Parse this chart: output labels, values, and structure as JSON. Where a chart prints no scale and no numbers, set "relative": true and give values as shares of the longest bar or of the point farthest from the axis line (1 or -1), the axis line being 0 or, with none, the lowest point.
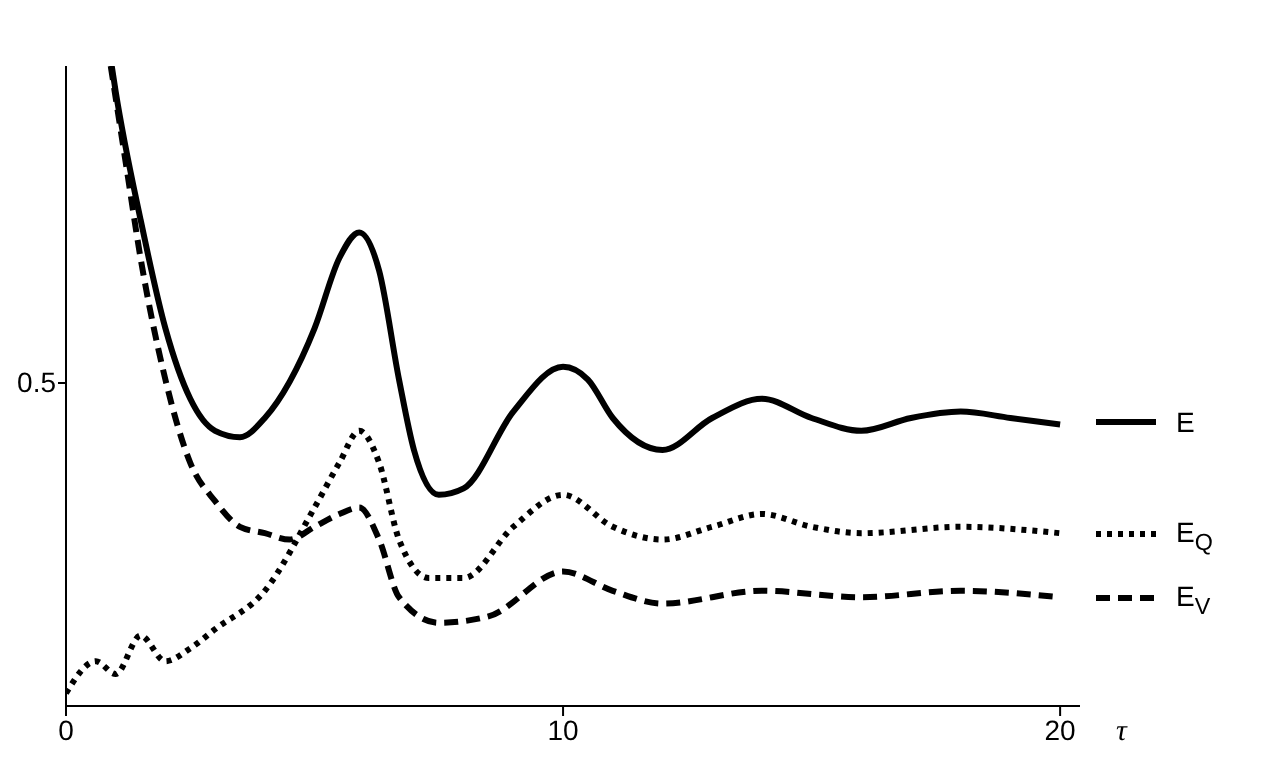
{
  "chart_data": {
    "type": "line",
    "xlabel": "τ",
    "xlim": [
      0,
      20.4
    ],
    "xticks": [
      0,
      10,
      20
    ],
    "relative": true,
    "annotations": [
      "0.5"
    ],
    "grid": false,
    "legend": "right",
    "marker": "none",
    "series": [
      {
        "name": "E",
        "color": "#000000",
        "line_style": "solid",
        "x": [
          0.92,
          1.0,
          1.5,
          2,
          2.5,
          3,
          3.5,
          4,
          5,
          5.5,
          5.9,
          6.3,
          6.7,
          7,
          7.5,
          8,
          9,
          10,
          10.5,
          11,
          12,
          13,
          14,
          15,
          16,
          17,
          18,
          19,
          20
        ],
        "values": [
          1.0,
          0.96,
          0.76,
          0.59,
          0.48,
          0.43,
          0.42,
          0.45,
          0.59,
          0.7,
          0.74,
          0.68,
          0.51,
          0.4,
          0.33,
          0.34,
          0.46,
          0.53,
          0.51,
          0.45,
          0.4,
          0.45,
          0.48,
          0.45,
          0.43,
          0.45,
          0.46,
          0.45,
          0.44
        ]
      },
      {
        "name": "E$_{Q}$",
        "color": "#000000",
        "line_style": "dotted",
        "x": [
          0,
          0.6,
          1,
          1.5,
          2,
          2.5,
          3,
          4,
          5,
          5.5,
          5.9,
          6.3,
          6.7,
          7.3,
          8,
          9,
          10,
          11,
          12,
          13,
          14,
          15,
          16,
          18,
          20
        ],
        "values": [
          0.02,
          0.07,
          0.05,
          0.11,
          0.07,
          0.09,
          0.12,
          0.18,
          0.31,
          0.38,
          0.43,
          0.38,
          0.26,
          0.2,
          0.2,
          0.28,
          0.33,
          0.28,
          0.26,
          0.28,
          0.3,
          0.28,
          0.27,
          0.28,
          0.27
        ]
      },
      {
        "name": "E$_{V}$",
        "color": "#000000",
        "line_style": "dashed",
        "x": [
          0.9,
          1.2,
          1.5,
          2,
          2.5,
          3,
          3.5,
          4,
          4.5,
          5,
          5.5,
          5.9,
          6.3,
          6.7,
          7.5,
          8.5,
          10,
          11,
          12,
          14,
          16,
          18,
          20
        ],
        "values": [
          1.0,
          0.85,
          0.7,
          0.51,
          0.38,
          0.32,
          0.28,
          0.27,
          0.26,
          0.28,
          0.3,
          0.31,
          0.26,
          0.17,
          0.13,
          0.14,
          0.21,
          0.18,
          0.16,
          0.18,
          0.17,
          0.18,
          0.17
        ]
      }
    ]
  }
}
